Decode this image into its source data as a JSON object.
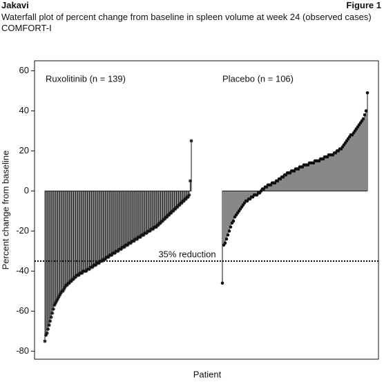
{
  "header": {
    "left": "Jakavi",
    "right": "Figure 1"
  },
  "chart_data": {
    "type": "waterfall",
    "title": "Waterfall plot of percent change from baseline in spleen volume at week 24 (observed cases) COMFORT-I",
    "xlabel": "Patient",
    "ylabel": "Percent change from baseline",
    "ylim": [
      -84,
      65
    ],
    "yticks": [
      60,
      40,
      20,
      0,
      -20,
      -40,
      -60,
      -80
    ],
    "reference_line": {
      "value": -35,
      "label": "35% reduction"
    },
    "series": [
      {
        "name": "Ruxolitinib (n = 139)",
        "color": "#111111",
        "marker": "star",
        "values": [
          -75,
          -72,
          -71,
          -69,
          -67,
          -65,
          -63,
          -61,
          -59,
          -57,
          -56,
          -55,
          -54,
          -53,
          -52,
          -51,
          -50,
          -50,
          -49,
          -48,
          -47,
          -47,
          -46,
          -46,
          -45,
          -45,
          -44,
          -44,
          -43,
          -43,
          -42,
          -42,
          -42,
          -41,
          -41,
          -41,
          -40,
          -40,
          -40,
          -40,
          -39,
          -39,
          -39,
          -38,
          -38,
          -38,
          -37,
          -37,
          -37,
          -36,
          -36,
          -36,
          -35,
          -35,
          -35,
          -34,
          -34,
          -34,
          -33,
          -33,
          -33,
          -32,
          -32,
          -32,
          -31,
          -31,
          -31,
          -30,
          -30,
          -30,
          -29,
          -29,
          -29,
          -28,
          -28,
          -28,
          -27,
          -27,
          -27,
          -26,
          -26,
          -26,
          -25,
          -25,
          -25,
          -24,
          -24,
          -24,
          -23,
          -23,
          -23,
          -22,
          -22,
          -22,
          -21,
          -21,
          -21,
          -20,
          -20,
          -20,
          -19,
          -19,
          -19,
          -18,
          -18,
          -18,
          -17,
          -17,
          -16,
          -16,
          -15,
          -15,
          -14,
          -14,
          -13,
          -13,
          -12,
          -12,
          -11,
          -11,
          -10,
          -10,
          -9,
          -9,
          -8,
          -8,
          -7,
          -7,
          -6,
          -6,
          -5,
          -5,
          -4,
          -4,
          -3,
          -3,
          -2,
          5,
          25
        ]
      },
      {
        "name": "Placebo (n = 106)",
        "color": "#111111",
        "marker": "circle",
        "values": [
          -46,
          -27,
          -26,
          -24,
          -22,
          -20,
          -18,
          -16,
          -15,
          -13,
          -12,
          -11,
          -10,
          -9,
          -8,
          -7,
          -6,
          -5,
          -5,
          -4,
          -4,
          -3,
          -3,
          -2,
          -2,
          -2,
          -1,
          -1,
          0,
          1,
          1,
          2,
          2,
          3,
          3,
          3,
          4,
          4,
          4,
          5,
          5,
          6,
          6,
          7,
          7,
          8,
          8,
          9,
          9,
          9,
          10,
          10,
          10,
          11,
          11,
          11,
          12,
          12,
          12,
          13,
          13,
          13,
          13,
          14,
          14,
          14,
          14,
          15,
          15,
          15,
          15,
          16,
          16,
          16,
          17,
          17,
          17,
          18,
          18,
          18,
          18,
          19,
          19,
          20,
          20,
          21,
          21,
          22,
          23,
          24,
          25,
          26,
          27,
          28,
          28,
          29,
          30,
          31,
          32,
          33,
          34,
          35,
          36,
          38,
          40,
          49
        ]
      }
    ]
  }
}
